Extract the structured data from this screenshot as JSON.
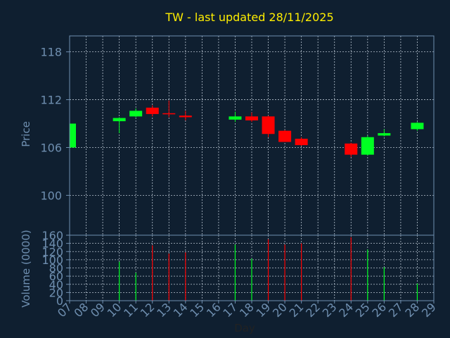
{
  "title": "TW - last updated 28/11/2025",
  "colors": {
    "background": "#0f1f30",
    "axis": "#6f8fb0",
    "grid": "#b8c4d0",
    "title": "#ffee00",
    "label": "#6f8fb0",
    "up": "#00ff22",
    "down": "#ff0000"
  },
  "chart_data": [
    {
      "type": "candlestick",
      "ylabel": "Price",
      "ylim": [
        95,
        120
      ],
      "yticks": [
        100,
        106,
        112,
        118
      ],
      "grid": true,
      "candles": [
        {
          "day": 7,
          "open": 106.0,
          "high": 109.3,
          "low": 105.8,
          "close": 109.0
        },
        {
          "day": 10,
          "open": 109.3,
          "high": 109.8,
          "low": 107.8,
          "close": 109.7
        },
        {
          "day": 11,
          "open": 109.9,
          "high": 110.9,
          "low": 109.8,
          "close": 110.6
        },
        {
          "day": 12,
          "open": 111.0,
          "high": 111.3,
          "low": 109.9,
          "close": 110.2
        },
        {
          "day": 13,
          "open": 110.3,
          "high": 111.9,
          "low": 109.8,
          "close": 110.2
        },
        {
          "day": 14,
          "open": 110.0,
          "high": 110.6,
          "low": 109.4,
          "close": 109.8
        },
        {
          "day": 17,
          "open": 109.5,
          "high": 110.5,
          "low": 109.2,
          "close": 109.9
        },
        {
          "day": 18,
          "open": 109.9,
          "high": 110.4,
          "low": 109.2,
          "close": 109.4
        },
        {
          "day": 19,
          "open": 109.9,
          "high": 110.0,
          "low": 107.3,
          "close": 107.7
        },
        {
          "day": 20,
          "open": 108.1,
          "high": 108.2,
          "low": 106.7,
          "close": 106.7
        },
        {
          "day": 21,
          "open": 107.1,
          "high": 107.3,
          "low": 106.2,
          "close": 106.3
        },
        {
          "day": 24,
          "open": 106.5,
          "high": 106.6,
          "low": 104.8,
          "close": 105.1
        },
        {
          "day": 25,
          "open": 105.1,
          "high": 107.5,
          "low": 105.0,
          "close": 107.3
        },
        {
          "day": 26,
          "open": 107.5,
          "high": 108.3,
          "low": 107.4,
          "close": 107.8
        },
        {
          "day": 28,
          "open": 108.3,
          "high": 109.2,
          "low": 108.1,
          "close": 109.1
        }
      ]
    },
    {
      "type": "bar",
      "ylabel": "Volume (0000)",
      "xlabel": "Day",
      "ylim": [
        0,
        160
      ],
      "yticks": [
        0,
        20,
        40,
        60,
        80,
        100,
        120,
        140,
        160
      ],
      "xticks": [
        "07",
        "08",
        "09",
        "10",
        "11",
        "12",
        "13",
        "14",
        "15",
        "16",
        "17",
        "18",
        "19",
        "20",
        "21",
        "22",
        "23",
        "24",
        "25",
        "26",
        "27",
        "28",
        "29"
      ],
      "grid": true,
      "bars": [
        {
          "day": 7,
          "value": 0,
          "dir": "up"
        },
        {
          "day": 10,
          "value": 95,
          "dir": "up"
        },
        {
          "day": 11,
          "value": 68,
          "dir": "up"
        },
        {
          "day": 12,
          "value": 135,
          "dir": "down"
        },
        {
          "day": 13,
          "value": 115,
          "dir": "down"
        },
        {
          "day": 14,
          "value": 118,
          "dir": "down"
        },
        {
          "day": 17,
          "value": 137,
          "dir": "up"
        },
        {
          "day": 18,
          "value": 103,
          "dir": "up"
        },
        {
          "day": 19,
          "value": 150,
          "dir": "down"
        },
        {
          "day": 20,
          "value": 137,
          "dir": "down"
        },
        {
          "day": 21,
          "value": 140,
          "dir": "down"
        },
        {
          "day": 24,
          "value": 155,
          "dir": "down"
        },
        {
          "day": 25,
          "value": 125,
          "dir": "up"
        },
        {
          "day": 26,
          "value": 82,
          "dir": "up"
        },
        {
          "day": 28,
          "value": 42,
          "dir": "up"
        }
      ]
    }
  ]
}
